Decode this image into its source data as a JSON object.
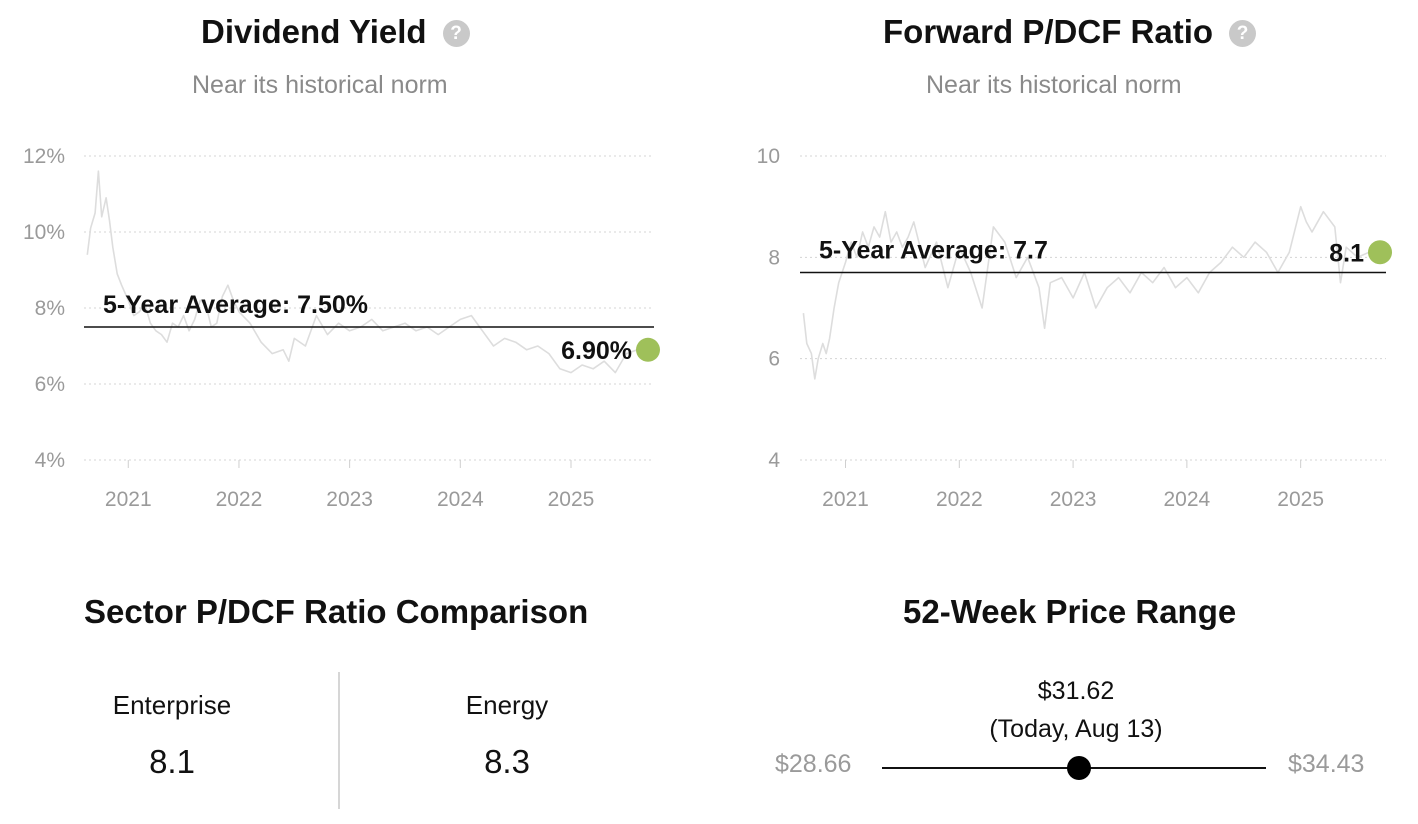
{
  "dividend_yield": {
    "title": "Dividend Yield",
    "help_icon": "question-circle-icon",
    "subtitle": "Near its historical norm"
  },
  "forward_pdcf": {
    "title": "Forward P/DCF Ratio",
    "help_icon": "question-circle-icon",
    "subtitle": "Near its historical norm"
  },
  "chart_data": [
    {
      "type": "line",
      "title": "Dividend Yield",
      "subtitle": "Near its historical norm",
      "xlabel": "",
      "ylabel": "",
      "xlim": [
        2020.6,
        2025.75
      ],
      "ylim": [
        4,
        12
      ],
      "x_ticks": [
        2021,
        2022,
        2023,
        2024,
        2025
      ],
      "x_tick_labels": [
        "2021",
        "2022",
        "2023",
        "2024",
        "2025"
      ],
      "y_ticks": [
        4,
        6,
        8,
        10,
        12
      ],
      "y_tick_labels": [
        "4%",
        "6%",
        "8%",
        "10%",
        "12%"
      ],
      "grid": true,
      "line_color": "#dddddd",
      "average_value": 7.5,
      "average_label": "5-Year Average: 7.50%",
      "current_value": 6.9,
      "current_label": "6.90%",
      "current_marker_color": "#9fc05a",
      "series": [
        {
          "x": [
            2020.63,
            2020.66,
            2020.7,
            2020.73,
            2020.76,
            2020.8,
            2020.83,
            2020.86,
            2020.9,
            2020.94,
            2021.0,
            2021.05,
            2021.1,
            2021.15,
            2021.2,
            2021.25,
            2021.3,
            2021.35,
            2021.4,
            2021.45,
            2021.5,
            2021.55,
            2021.6,
            2021.65,
            2021.7,
            2021.75,
            2021.8,
            2021.85,
            2021.9,
            2021.95,
            2022.0,
            2022.1,
            2022.2,
            2022.3,
            2022.4,
            2022.45,
            2022.5,
            2022.6,
            2022.7,
            2022.8,
            2022.9,
            2023.0,
            2023.1,
            2023.2,
            2023.3,
            2023.4,
            2023.5,
            2023.6,
            2023.7,
            2023.8,
            2023.9,
            2024.0,
            2024.1,
            2024.2,
            2024.3,
            2024.4,
            2024.5,
            2024.6,
            2024.7,
            2024.8,
            2024.9,
            2025.0,
            2025.1,
            2025.2,
            2025.3,
            2025.4,
            2025.5,
            2025.6
          ],
          "y": [
            9.4,
            10.1,
            10.5,
            11.6,
            10.4,
            10.9,
            10.3,
            9.6,
            8.9,
            8.6,
            8.2,
            7.8,
            7.9,
            8.1,
            7.6,
            7.4,
            7.3,
            7.1,
            7.6,
            7.5,
            7.8,
            7.4,
            7.7,
            8.2,
            8.1,
            7.5,
            7.6,
            8.3,
            8.6,
            8.2,
            7.9,
            7.6,
            7.1,
            6.8,
            6.9,
            6.6,
            7.2,
            7.0,
            7.8,
            7.3,
            7.6,
            7.4,
            7.5,
            7.7,
            7.4,
            7.5,
            7.6,
            7.4,
            7.5,
            7.3,
            7.5,
            7.7,
            7.8,
            7.4,
            7.0,
            7.2,
            7.1,
            6.9,
            7.0,
            6.8,
            6.4,
            6.3,
            6.5,
            6.4,
            6.6,
            6.3,
            6.8,
            6.9
          ]
        }
      ]
    },
    {
      "type": "line",
      "title": "Forward P/DCF Ratio",
      "subtitle": "Near its historical norm",
      "xlabel": "",
      "ylabel": "",
      "xlim": [
        2020.6,
        2025.75
      ],
      "ylim": [
        4,
        10
      ],
      "x_ticks": [
        2021,
        2022,
        2023,
        2024,
        2025
      ],
      "x_tick_labels": [
        "2021",
        "2022",
        "2023",
        "2024",
        "2025"
      ],
      "y_ticks": [
        4,
        6,
        8,
        10
      ],
      "y_tick_labels": [
        "4",
        "6",
        "8",
        "10"
      ],
      "grid": true,
      "line_color": "#dddddd",
      "average_value": 7.7,
      "average_label": "5-Year Average: 7.7",
      "current_value": 8.1,
      "current_label": "8.1",
      "current_marker_color": "#9fc05a",
      "series": [
        {
          "x": [
            2020.63,
            2020.66,
            2020.7,
            2020.73,
            2020.76,
            2020.8,
            2020.83,
            2020.86,
            2020.9,
            2020.94,
            2021.0,
            2021.05,
            2021.1,
            2021.15,
            2021.2,
            2021.25,
            2021.3,
            2021.35,
            2021.4,
            2021.45,
            2021.5,
            2021.55,
            2021.6,
            2021.7,
            2021.8,
            2021.9,
            2022.0,
            2022.1,
            2022.2,
            2022.3,
            2022.4,
            2022.5,
            2022.6,
            2022.7,
            2022.75,
            2022.8,
            2022.9,
            2023.0,
            2023.1,
            2023.2,
            2023.3,
            2023.4,
            2023.5,
            2023.6,
            2023.7,
            2023.8,
            2023.9,
            2024.0,
            2024.1,
            2024.2,
            2024.3,
            2024.4,
            2024.5,
            2024.6,
            2024.7,
            2024.8,
            2024.9,
            2025.0,
            2025.05,
            2025.1,
            2025.2,
            2025.3,
            2025.35,
            2025.4,
            2025.5,
            2025.6
          ],
          "y": [
            6.9,
            6.3,
            6.1,
            5.6,
            6.0,
            6.3,
            6.1,
            6.4,
            7.0,
            7.5,
            7.9,
            8.3,
            8.0,
            8.5,
            8.2,
            8.6,
            8.4,
            8.9,
            8.3,
            8.5,
            8.2,
            8.4,
            8.7,
            7.8,
            8.3,
            7.4,
            8.2,
            7.7,
            7.0,
            8.6,
            8.3,
            7.6,
            8.0,
            7.4,
            6.6,
            7.5,
            7.6,
            7.2,
            7.7,
            7.0,
            7.4,
            7.6,
            7.3,
            7.7,
            7.5,
            7.8,
            7.4,
            7.6,
            7.3,
            7.7,
            7.9,
            8.2,
            8.0,
            8.3,
            8.1,
            7.7,
            8.1,
            9.0,
            8.7,
            8.5,
            8.9,
            8.6,
            7.5,
            8.2,
            8.0,
            8.1
          ]
        }
      ]
    }
  ],
  "sector": {
    "title": "Sector P/DCF Ratio Comparison",
    "items": [
      {
        "name": "Enterprise",
        "value": "8.1"
      },
      {
        "name": "Energy",
        "value": "8.3"
      }
    ]
  },
  "price_range": {
    "title": "52-Week Price Range",
    "current_price": "$31.62",
    "current_note": "(Today, Aug 13)",
    "low_label": "$28.66",
    "high_label": "$34.43",
    "low": 28.66,
    "high": 34.43,
    "current": 31.62
  }
}
